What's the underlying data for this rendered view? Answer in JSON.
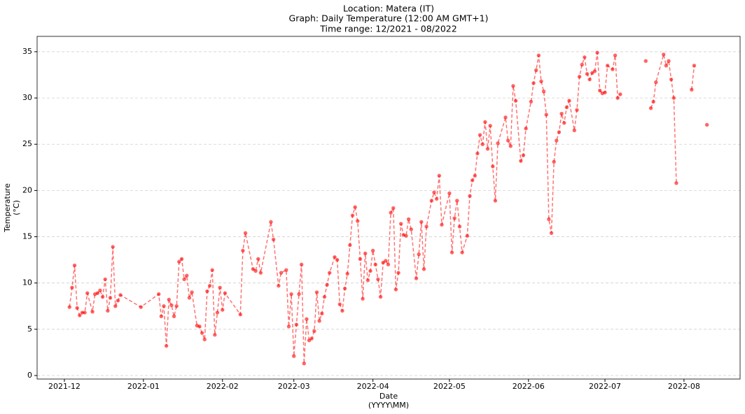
{
  "chart_data": {
    "type": "line",
    "title": [
      "Location: Matera (IT)",
      "Graph: Daily Temperature (12:00 AM GMT+1)",
      "Time range: 12/2021 - 08/2022"
    ],
    "xlabel": [
      "Date",
      "(YYYY\\MM)"
    ],
    "ylabel": [
      "Temperature",
      "(°C)"
    ],
    "color": "#ff0000",
    "line_style": "dashed",
    "grid": "y",
    "x": [
      18964,
      18965,
      18966,
      18967,
      18968,
      18969,
      18970,
      18971,
      18973,
      18974,
      18975,
      18976,
      18977,
      18978,
      18979,
      18980,
      18981,
      18982,
      18983,
      18984,
      18992,
      18999,
      19000,
      19001,
      19002,
      19003,
      19004,
      19005,
      19006,
      19007,
      19008,
      19009,
      19010,
      19011,
      19012,
      19014,
      19015,
      19016,
      19017,
      19018,
      19019,
      19020,
      19021,
      19022,
      19023,
      19024,
      19025,
      19031,
      19032,
      19033,
      19036,
      19037,
      19038,
      19039,
      19043,
      19044,
      19046,
      19047,
      19049,
      19050,
      19051,
      19052,
      19053,
      19054,
      19055,
      19056,
      19057,
      19058,
      19059,
      19060,
      19061,
      19062,
      19063,
      19064,
      19065,
      19066,
      19068,
      19069,
      19070,
      19071,
      19072,
      19073,
      19074,
      19075,
      19076,
      19077,
      19078,
      19079,
      19080,
      19081,
      19082,
      19083,
      19084,
      19085,
      19086,
      19087,
      19088,
      19089,
      19090,
      19091,
      19092,
      19093,
      19094,
      19095,
      19096,
      19097,
      19098,
      19100,
      19101,
      19102,
      19103,
      19104,
      19106,
      19107,
      19108,
      19109,
      19110,
      19113,
      19114,
      19115,
      19116,
      19117,
      19118,
      19120,
      19121,
      19122,
      19123,
      19124,
      19125,
      19126,
      19127,
      19128,
      19129,
      19130,
      19131,
      19132,
      19135,
      19136,
      19137,
      19138,
      19139,
      19141,
      19142,
      19143,
      19145,
      19146,
      19147,
      19148,
      19149,
      19150,
      19151,
      19152,
      19153,
      19154,
      19155,
      19156,
      19157,
      19158,
      19159,
      19160,
      19162,
      19163,
      19164,
      19165,
      19166,
      19167,
      19168,
      19169,
      19170,
      19171,
      19172,
      19173,
      19174,
      19175,
      19177,
      19178,
      19179,
      19180,
      19181,
      19190,
      19191,
      19192,
      19193,
      19194,
      19197,
      19198,
      19199,
      19200,
      19201,
      19202,
      19203,
      19208,
      19209,
      19210,
      19214
    ],
    "values": [
      7.4,
      9.5,
      11.9,
      7.3,
      6.5,
      6.8,
      6.8,
      8.9,
      6.9,
      8.8,
      8.9,
      9.2,
      8.5,
      10.4,
      7.0,
      8.4,
      13.9,
      7.5,
      8.1,
      8.7,
      7.4,
      8.8,
      6.4,
      7.5,
      3.2,
      8.2,
      7.6,
      6.4,
      7.5,
      12.3,
      12.6,
      10.4,
      10.8,
      8.4,
      9.0,
      5.4,
      5.3,
      4.6,
      3.9,
      9.1,
      9.7,
      11.4,
      4.4,
      6.8,
      9.5,
      7.1,
      8.9,
      6.6,
      13.5,
      15.4,
      11.5,
      11.3,
      12.6,
      11.1,
      16.6,
      14.7,
      9.7,
      11.1,
      11.4,
      5.3,
      8.8,
      2.1,
      5.5,
      8.8,
      12.0,
      1.3,
      6.1,
      3.8,
      4.0,
      4.8,
      9.0,
      5.9,
      6.7,
      8.5,
      9.8,
      11.1,
      12.8,
      12.5,
      7.7,
      7.0,
      9.4,
      11.0,
      14.1,
      17.3,
      18.2,
      16.7,
      12.6,
      8.3,
      13.2,
      10.3,
      11.3,
      13.5,
      12.0,
      10.4,
      8.5,
      12.2,
      12.4,
      12.0,
      17.6,
      18.1,
      9.3,
      11.1,
      16.4,
      15.2,
      15.1,
      16.9,
      15.8,
      10.5,
      13.1,
      16.6,
      11.5,
      16.1,
      18.9,
      19.8,
      19.1,
      21.6,
      16.3,
      19.7,
      13.3,
      17.0,
      18.9,
      16.1,
      13.3,
      15.1,
      19.4,
      21.1,
      21.6,
      24.0,
      26.0,
      25.0,
      27.4,
      24.5,
      27.0,
      22.6,
      18.9,
      25.1,
      27.9,
      25.4,
      24.8,
      31.3,
      29.7,
      23.2,
      23.8,
      26.7,
      29.6,
      31.6,
      33.0,
      34.6,
      31.8,
      30.7,
      28.2,
      16.9,
      15.4,
      23.1,
      25.4,
      26.3,
      28.3,
      27.3,
      29.0,
      29.7,
      26.5,
      28.7,
      32.3,
      33.6,
      34.4,
      32.6,
      32.0,
      32.7,
      32.9,
      34.9,
      30.8,
      30.5,
      30.6,
      33.5,
      33.1,
      34.6,
      30.0,
      30.4,
      null,
      34.0,
      null,
      28.9,
      29.6,
      31.7,
      34.7,
      33.5,
      34.0,
      32.0,
      30.0,
      20.8,
      null,
      30.9,
      33.5,
      null,
      27.1
    ],
    "xlim": [
      18951.3,
      19227
    ],
    "xticks": [
      {
        "value": 18962,
        "label": "2021-12"
      },
      {
        "value": 18993,
        "label": "2022-01"
      },
      {
        "value": 19024,
        "label": "2022-02"
      },
      {
        "value": 19052,
        "label": "2022-03"
      },
      {
        "value": 19083,
        "label": "2022-04"
      },
      {
        "value": 19113,
        "label": "2022-05"
      },
      {
        "value": 19144,
        "label": "2022-06"
      },
      {
        "value": 19174,
        "label": "2022-07"
      },
      {
        "value": 19205,
        "label": "2022-08"
      }
    ],
    "ylim": [
      -0.38,
      36.66
    ],
    "yticks": [
      0,
      5,
      10,
      15,
      20,
      25,
      30,
      35
    ]
  }
}
